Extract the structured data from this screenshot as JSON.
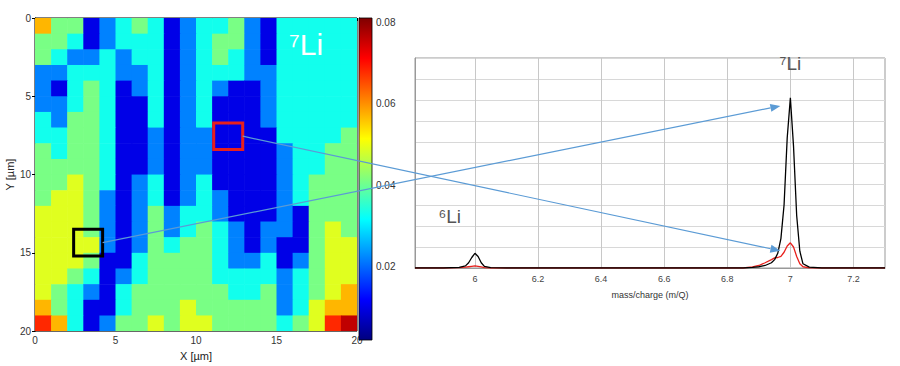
{
  "chart_data": [
    {
      "type": "heatmap",
      "title": "⁷Li",
      "x_label": "X [µm]",
      "y_label": "Y [µm]",
      "x_edges": [
        0,
        1,
        2,
        3,
        4,
        5,
        6,
        7,
        8,
        9,
        10,
        11,
        12,
        13,
        14,
        15,
        16,
        17,
        18,
        19,
        20
      ],
      "y_edges": [
        0,
        1,
        2,
        3,
        4,
        5,
        6,
        7,
        8,
        9,
        10,
        11,
        12,
        13,
        14,
        15,
        16,
        17,
        18,
        19,
        20
      ],
      "z": [
        [
          0.057,
          0.041,
          0.041,
          0.01,
          0.022,
          0.033,
          0.041,
          0.033,
          0.01,
          0.022,
          0.033,
          0.033,
          0.041,
          0.022,
          0.01,
          0.033,
          0.033,
          0.033,
          0.033,
          0.033
        ],
        [
          0.041,
          0.041,
          0.033,
          0.01,
          0.022,
          0.033,
          0.033,
          0.033,
          0.01,
          0.022,
          0.033,
          0.041,
          0.041,
          0.022,
          0.01,
          0.033,
          0.033,
          0.033,
          0.033,
          0.033
        ],
        [
          0.041,
          0.033,
          0.022,
          0.022,
          0.033,
          0.022,
          0.033,
          0.033,
          0.01,
          0.022,
          0.033,
          0.041,
          0.033,
          0.022,
          0.01,
          0.033,
          0.033,
          0.033,
          0.033,
          0.033
        ],
        [
          0.022,
          0.022,
          0.033,
          0.033,
          0.033,
          0.022,
          0.022,
          0.033,
          0.01,
          0.022,
          0.033,
          0.033,
          0.033,
          0.022,
          0.022,
          0.033,
          0.033,
          0.033,
          0.033,
          0.033
        ],
        [
          0.022,
          0.01,
          0.033,
          0.041,
          0.033,
          0.01,
          0.022,
          0.033,
          0.01,
          0.022,
          0.033,
          0.022,
          0.01,
          0.01,
          0.022,
          0.033,
          0.033,
          0.033,
          0.033,
          0.033
        ],
        [
          0.022,
          0.022,
          0.033,
          0.041,
          0.033,
          0.01,
          0.01,
          0.033,
          0.01,
          0.022,
          0.033,
          0.01,
          0.01,
          0.01,
          0.022,
          0.033,
          0.033,
          0.033,
          0.033,
          0.033
        ],
        [
          0.033,
          0.022,
          0.041,
          0.041,
          0.033,
          0.01,
          0.01,
          0.033,
          0.01,
          0.022,
          0.033,
          0.01,
          0.01,
          0.01,
          0.022,
          0.033,
          0.033,
          0.033,
          0.033,
          0.033
        ],
        [
          0.033,
          0.033,
          0.041,
          0.041,
          0.033,
          0.01,
          0.01,
          0.022,
          0.01,
          0.022,
          0.022,
          0.01,
          0.01,
          0.01,
          0.01,
          0.033,
          0.033,
          0.033,
          0.033,
          0.041
        ],
        [
          0.041,
          0.033,
          0.041,
          0.041,
          0.033,
          0.01,
          0.01,
          0.022,
          0.01,
          0.022,
          0.022,
          0.01,
          0.01,
          0.01,
          0.01,
          0.022,
          0.033,
          0.033,
          0.041,
          0.041
        ],
        [
          0.041,
          0.041,
          0.041,
          0.041,
          0.033,
          0.01,
          0.01,
          0.022,
          0.01,
          0.022,
          0.022,
          0.01,
          0.01,
          0.01,
          0.01,
          0.022,
          0.033,
          0.033,
          0.041,
          0.041
        ],
        [
          0.041,
          0.041,
          0.049,
          0.041,
          0.033,
          0.01,
          0.022,
          0.033,
          0.01,
          0.022,
          0.033,
          0.01,
          0.01,
          0.01,
          0.01,
          0.022,
          0.033,
          0.041,
          0.041,
          0.041
        ],
        [
          0.041,
          0.049,
          0.049,
          0.041,
          0.022,
          0.01,
          0.022,
          0.033,
          0.01,
          0.022,
          0.033,
          0.022,
          0.01,
          0.01,
          0.01,
          0.022,
          0.033,
          0.041,
          0.041,
          0.041
        ],
        [
          0.049,
          0.049,
          0.049,
          0.041,
          0.022,
          0.01,
          0.022,
          0.041,
          0.022,
          0.033,
          0.033,
          0.022,
          0.01,
          0.01,
          0.01,
          0.022,
          0.01,
          0.041,
          0.041,
          0.041
        ],
        [
          0.049,
          0.049,
          0.049,
          0.041,
          0.022,
          0.01,
          0.022,
          0.041,
          0.022,
          0.033,
          0.041,
          0.033,
          0.022,
          0.01,
          0.022,
          0.022,
          0.01,
          0.041,
          0.049,
          0.041
        ],
        [
          0.049,
          0.049,
          0.049,
          0.049,
          0.022,
          0.01,
          0.022,
          0.041,
          0.033,
          0.041,
          0.041,
          0.033,
          0.022,
          0.01,
          0.022,
          0.01,
          0.01,
          0.041,
          0.049,
          0.049
        ],
        [
          0.049,
          0.049,
          0.049,
          0.041,
          0.01,
          0.01,
          0.033,
          0.041,
          0.041,
          0.041,
          0.041,
          0.033,
          0.022,
          0.022,
          0.033,
          0.01,
          0.022,
          0.041,
          0.049,
          0.049
        ],
        [
          0.049,
          0.049,
          0.041,
          0.033,
          0.01,
          0.022,
          0.033,
          0.041,
          0.041,
          0.041,
          0.041,
          0.033,
          0.033,
          0.033,
          0.033,
          0.022,
          0.033,
          0.041,
          0.049,
          0.049
        ],
        [
          0.049,
          0.041,
          0.033,
          0.022,
          0.01,
          0.033,
          0.041,
          0.041,
          0.041,
          0.041,
          0.041,
          0.041,
          0.033,
          0.033,
          0.041,
          0.022,
          0.033,
          0.041,
          0.049,
          0.057
        ],
        [
          0.057,
          0.041,
          0.033,
          0.01,
          0.01,
          0.033,
          0.041,
          0.041,
          0.041,
          0.049,
          0.041,
          0.041,
          0.041,
          0.041,
          0.041,
          0.022,
          0.033,
          0.049,
          0.057,
          0.057
        ],
        [
          0.068,
          0.057,
          0.033,
          0.01,
          0.022,
          0.041,
          0.041,
          0.049,
          0.041,
          0.049,
          0.049,
          0.041,
          0.041,
          0.041,
          0.041,
          0.033,
          0.041,
          0.049,
          0.068,
          0.076
        ]
      ],
      "xlim": [
        0,
        20
      ],
      "ylim": [
        0,
        20
      ],
      "xticks": [
        0,
        5,
        10,
        15,
        20
      ],
      "yticks": [
        0,
        5,
        10,
        15,
        20
      ],
      "zlim": [
        0.002,
        0.081
      ],
      "zticks": [
        0.02,
        0.04,
        0.06,
        0.08
      ],
      "regions": [
        {
          "color": "#e8201c",
          "x": [
            11.1,
            12.9
          ],
          "y": [
            6.7,
            8.4
          ]
        },
        {
          "color": "#000000",
          "x": [
            2.4,
            4.2
          ],
          "y": [
            13.5,
            15.2
          ]
        }
      ]
    },
    {
      "type": "line",
      "x_label": "mass/charge (m/Q)",
      "x": [
        5.81,
        5.9,
        5.95,
        5.97,
        5.98,
        5.99,
        6.0,
        6.01,
        6.02,
        6.03,
        6.05,
        6.1,
        6.5,
        6.85,
        6.88,
        6.9,
        6.92,
        6.94,
        6.95,
        6.96,
        6.97,
        6.98,
        6.99,
        7.0,
        7.01,
        7.02,
        7.03,
        7.04,
        7.06,
        7.1,
        7.3
      ],
      "series": [
        {
          "color": "#e8201c",
          "values": [
            0,
            0,
            0.002,
            0.004,
            0.006,
            0.008,
            0.01,
            0.008,
            0.005,
            0.002,
            0,
            0,
            0,
            0,
            0.005,
            0.012,
            0.025,
            0.04,
            0.048,
            0.05,
            0.055,
            0.075,
            0.105,
            0.12,
            0.1,
            0.055,
            0.02,
            0.006,
            0.001,
            0,
            0
          ]
        },
        {
          "color": "#000000",
          "values": [
            0,
            0,
            0.003,
            0.01,
            0.025,
            0.05,
            0.07,
            0.055,
            0.025,
            0.008,
            0.002,
            0,
            0,
            0,
            0.003,
            0.006,
            0.012,
            0.025,
            0.04,
            0.07,
            0.14,
            0.3,
            0.62,
            0.81,
            0.58,
            0.25,
            0.08,
            0.02,
            0.004,
            0,
            0
          ]
        }
      ],
      "xlim": [
        5.81,
        7.3
      ],
      "xticks": [
        6,
        6.2,
        6.4,
        6.6,
        6.8,
        7,
        7.2
      ],
      "ylim": [
        0,
        1
      ],
      "yticks": [
        0,
        0.1,
        0.2,
        0.3,
        0.4,
        0.5,
        0.6,
        0.7,
        0.8,
        0.9,
        1
      ],
      "grid": true,
      "tick_labels": "x",
      "annotations": [
        {
          "text": "⁶Li",
          "x": 5.92,
          "y": 0.2
        },
        {
          "text": "⁷Li",
          "x": 7.0,
          "y": 0.93
        }
      ]
    }
  ]
}
